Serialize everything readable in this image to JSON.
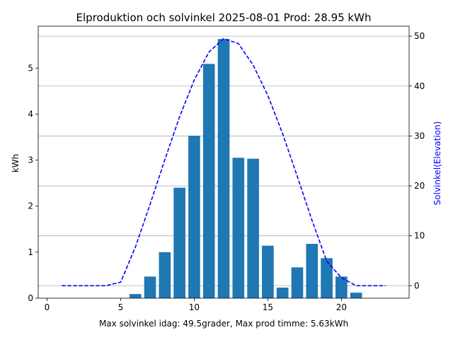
{
  "chart_data": {
    "type": "bar",
    "title": "Elproduktion och solvinkel 2025-08-01 Prod: 28.95 kWh",
    "xlabel": "Max solvinkel idag: 49.5grader, Max prod timme: 5.63kWh",
    "ylabel": "kWh",
    "y2label": "Solvinkel(Elevation)",
    "xlim": [
      -0.6,
      24.6
    ],
    "ylim": [
      0,
      5.91
    ],
    "y2lim": [
      -2.5,
      52
    ],
    "xticks": [
      0,
      5,
      10,
      15,
      20
    ],
    "yticks": [
      0,
      1,
      2,
      3,
      4,
      5
    ],
    "y2ticks": [
      0,
      10,
      20,
      30,
      40,
      50
    ],
    "grid": "horizontal lines at secondary axis ticks",
    "bar_color": "#1f77b4",
    "line_color": "#0000ff",
    "series": [
      {
        "axis": "left",
        "kind": "bar",
        "x": [
          6,
          7,
          8,
          9,
          10,
          11,
          12,
          13,
          14,
          15,
          16,
          17,
          18,
          19,
          20,
          21
        ],
        "values": [
          0.09,
          0.47,
          1.0,
          2.4,
          3.53,
          5.09,
          5.63,
          3.05,
          3.03,
          1.14,
          0.23,
          0.67,
          1.18,
          0.87,
          0.47,
          0.12
        ]
      },
      {
        "axis": "right",
        "kind": "line",
        "style": "dashed",
        "x": [
          1,
          2,
          3,
          4,
          5,
          6,
          7,
          8,
          9,
          10,
          11,
          12,
          13,
          14,
          15,
          16,
          17,
          18,
          19,
          20,
          21,
          22,
          23
        ],
        "values": [
          0,
          0,
          0,
          0,
          0.7,
          7.7,
          16.3,
          25.2,
          33.8,
          41.2,
          46.8,
          49.5,
          48.5,
          44.2,
          38.1,
          30.5,
          21.9,
          13.1,
          4.9,
          1.6,
          0,
          0,
          0
        ]
      }
    ]
  }
}
